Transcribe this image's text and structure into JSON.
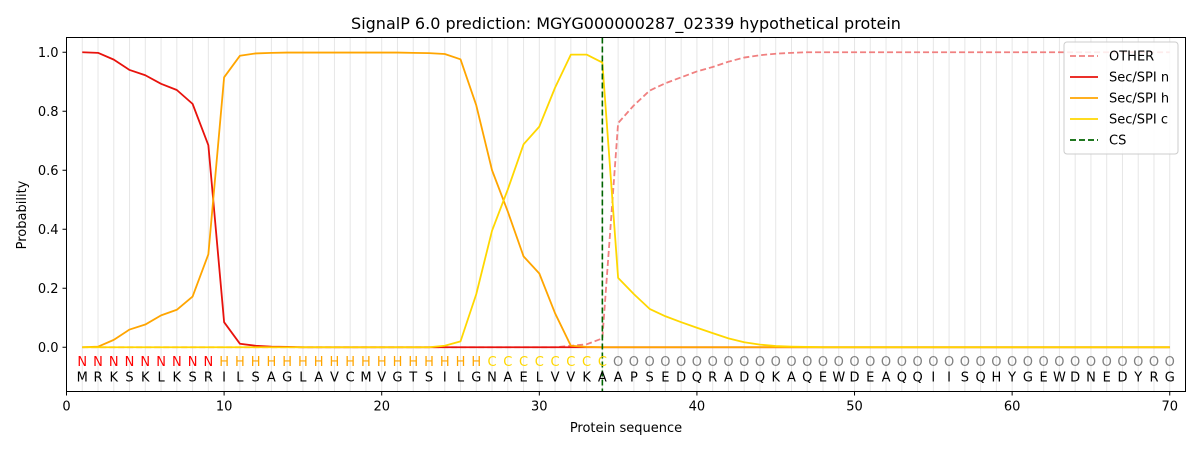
{
  "chart_data": {
    "type": "line",
    "title": "SignalP 6.0 prediction: MGYG000000287_02339 hypothetical protein",
    "xlabel": "Protein sequence",
    "ylabel": "Probability",
    "xlim": [
      0,
      71
    ],
    "ylim": [
      -0.15,
      1.05
    ],
    "x_ticks": [
      0,
      10,
      20,
      30,
      40,
      50,
      60,
      70
    ],
    "y_ticks": [
      0.0,
      0.2,
      0.4,
      0.6,
      0.8,
      1.0
    ],
    "x_tick_labels": [
      "0",
      "10",
      "20",
      "30",
      "40",
      "50",
      "60",
      "70"
    ],
    "y_tick_labels": [
      "0.0",
      "0.2",
      "0.4",
      "0.6",
      "0.8",
      "1.0"
    ],
    "legend_position": "top-right",
    "grid": "vertical lines at each residue",
    "sequence": [
      "M",
      "R",
      "K",
      "S",
      "K",
      "L",
      "K",
      "S",
      "R",
      "I",
      "L",
      "S",
      "A",
      "G",
      "L",
      "A",
      "V",
      "C",
      "M",
      "V",
      "G",
      "T",
      "S",
      "I",
      "L",
      "G",
      "N",
      "A",
      "E",
      "L",
      "V",
      "V",
      "K",
      "A",
      "A",
      "P",
      "S",
      "E",
      "D",
      "Q",
      "R",
      "A",
      "D",
      "Q",
      "K",
      "A",
      "Q",
      "E",
      "W",
      "D",
      "E",
      "A",
      "Q",
      "Q",
      "I",
      "I",
      "S",
      "Q",
      "H",
      "Y",
      "G",
      "E",
      "W",
      "D",
      "N",
      "E",
      "D",
      "Y",
      "R",
      "G"
    ],
    "region_labels": [
      "N",
      "N",
      "N",
      "N",
      "N",
      "N",
      "N",
      "N",
      "N",
      "H",
      "H",
      "H",
      "H",
      "H",
      "H",
      "H",
      "H",
      "H",
      "H",
      "H",
      "H",
      "H",
      "H",
      "H",
      "H",
      "H",
      "C",
      "C",
      "C",
      "C",
      "C",
      "C",
      "C",
      "C",
      "O",
      "O",
      "O",
      "O",
      "O",
      "O",
      "O",
      "O",
      "O",
      "O",
      "O",
      "O",
      "O",
      "O",
      "O",
      "O",
      "O",
      "O",
      "O",
      "O",
      "O",
      "O",
      "O",
      "O",
      "O",
      "O",
      "O",
      "O",
      "O",
      "O",
      "O",
      "O",
      "O",
      "O",
      "O",
      "O"
    ],
    "region_colors": {
      "N": "#ff0000",
      "H": "#ffa500",
      "C": "#ffd700",
      "O": "#808080"
    },
    "cs_position": 34,
    "series": [
      {
        "name": "OTHER",
        "color": "#f08080",
        "dash": "dashed",
        "values": [
          0.0,
          0.0,
          0.0,
          0.0,
          0.0,
          0.0,
          0.0,
          0.0,
          0.0,
          0.0,
          0.0,
          0.0,
          0.0,
          0.0,
          0.0,
          0.0,
          0.0,
          0.0,
          0.0,
          0.0,
          0.0,
          0.0,
          0.0,
          0.0,
          0.0,
          0.0,
          0.0,
          0.0,
          0.0,
          0.0,
          0.0,
          0.005,
          0.01,
          0.03,
          0.76,
          0.82,
          0.87,
          0.895,
          0.915,
          0.935,
          0.95,
          0.968,
          0.982,
          0.99,
          0.995,
          0.998,
          1.0,
          1.0,
          1.0,
          1.0,
          1.0,
          1.0,
          1.0,
          1.0,
          1.0,
          1.0,
          1.0,
          1.0,
          1.0,
          1.0,
          1.0,
          1.0,
          1.0,
          1.0,
          1.0,
          1.0,
          1.0,
          1.0,
          1.0,
          1.0
        ]
      },
      {
        "name": "Sec/SPI n",
        "color": "#e8120c",
        "dash": "solid",
        "values": [
          1.0,
          0.998,
          0.975,
          0.94,
          0.922,
          0.893,
          0.872,
          0.825,
          0.685,
          0.085,
          0.012,
          0.005,
          0.002,
          0.001,
          0.0,
          0.0,
          0.0,
          0.0,
          0.0,
          0.0,
          0.0,
          0.0,
          0.0,
          0.0,
          0.0,
          0.0,
          0.0,
          0.0,
          0.0,
          0.0,
          0.0,
          0.0,
          0.0,
          0.0,
          0.0,
          0.0,
          0.0,
          0.0,
          0.0,
          0.0,
          0.0,
          0.0,
          0.0,
          0.0,
          0.0,
          0.0,
          0.0,
          0.0,
          0.0,
          0.0,
          0.0,
          0.0,
          0.0,
          0.0,
          0.0,
          0.0,
          0.0,
          0.0,
          0.0,
          0.0,
          0.0,
          0.0,
          0.0,
          0.0,
          0.0,
          0.0,
          0.0,
          0.0,
          0.0,
          0.0
        ]
      },
      {
        "name": "Sec/SPI h",
        "color": "#ffa500",
        "dash": "solid",
        "values": [
          0.0,
          0.002,
          0.025,
          0.06,
          0.077,
          0.108,
          0.127,
          0.172,
          0.315,
          0.915,
          0.988,
          0.996,
          0.998,
          0.999,
          0.999,
          0.999,
          0.999,
          0.999,
          0.999,
          0.999,
          0.999,
          0.998,
          0.997,
          0.994,
          0.976,
          0.82,
          0.6,
          0.46,
          0.308,
          0.25,
          0.115,
          0.005,
          0.001,
          0.0,
          0.0,
          0.0,
          0.0,
          0.0,
          0.0,
          0.0,
          0.0,
          0.0,
          0.0,
          0.0,
          0.0,
          0.0,
          0.0,
          0.0,
          0.0,
          0.0,
          0.0,
          0.0,
          0.0,
          0.0,
          0.0,
          0.0,
          0.0,
          0.0,
          0.0,
          0.0,
          0.0,
          0.0,
          0.0,
          0.0,
          0.0,
          0.0,
          0.0,
          0.0,
          0.0,
          0.0
        ]
      },
      {
        "name": "Sec/SPI c",
        "color": "#ffd700",
        "dash": "solid",
        "values": [
          0.0,
          0.0,
          0.0,
          0.0,
          0.0,
          0.0,
          0.0,
          0.0,
          0.0,
          0.0,
          0.0,
          0.0,
          0.0,
          0.0,
          0.0,
          0.0,
          0.0,
          0.0,
          0.0,
          0.0,
          0.0,
          0.0,
          0.0,
          0.005,
          0.02,
          0.18,
          0.395,
          0.535,
          0.688,
          0.748,
          0.88,
          0.992,
          0.992,
          0.965,
          0.235,
          0.18,
          0.13,
          0.105,
          0.085,
          0.066,
          0.048,
          0.03,
          0.017,
          0.009,
          0.004,
          0.002,
          0.001,
          0.0,
          0.0,
          0.0,
          0.0,
          0.0,
          0.0,
          0.0,
          0.0,
          0.0,
          0.0,
          0.0,
          0.0,
          0.0,
          0.0,
          0.0,
          0.0,
          0.0,
          0.0,
          0.0,
          0.0,
          0.0,
          0.0,
          0.0
        ]
      },
      {
        "name": "CS",
        "color": "#006400",
        "dash": "dashed"
      }
    ]
  }
}
